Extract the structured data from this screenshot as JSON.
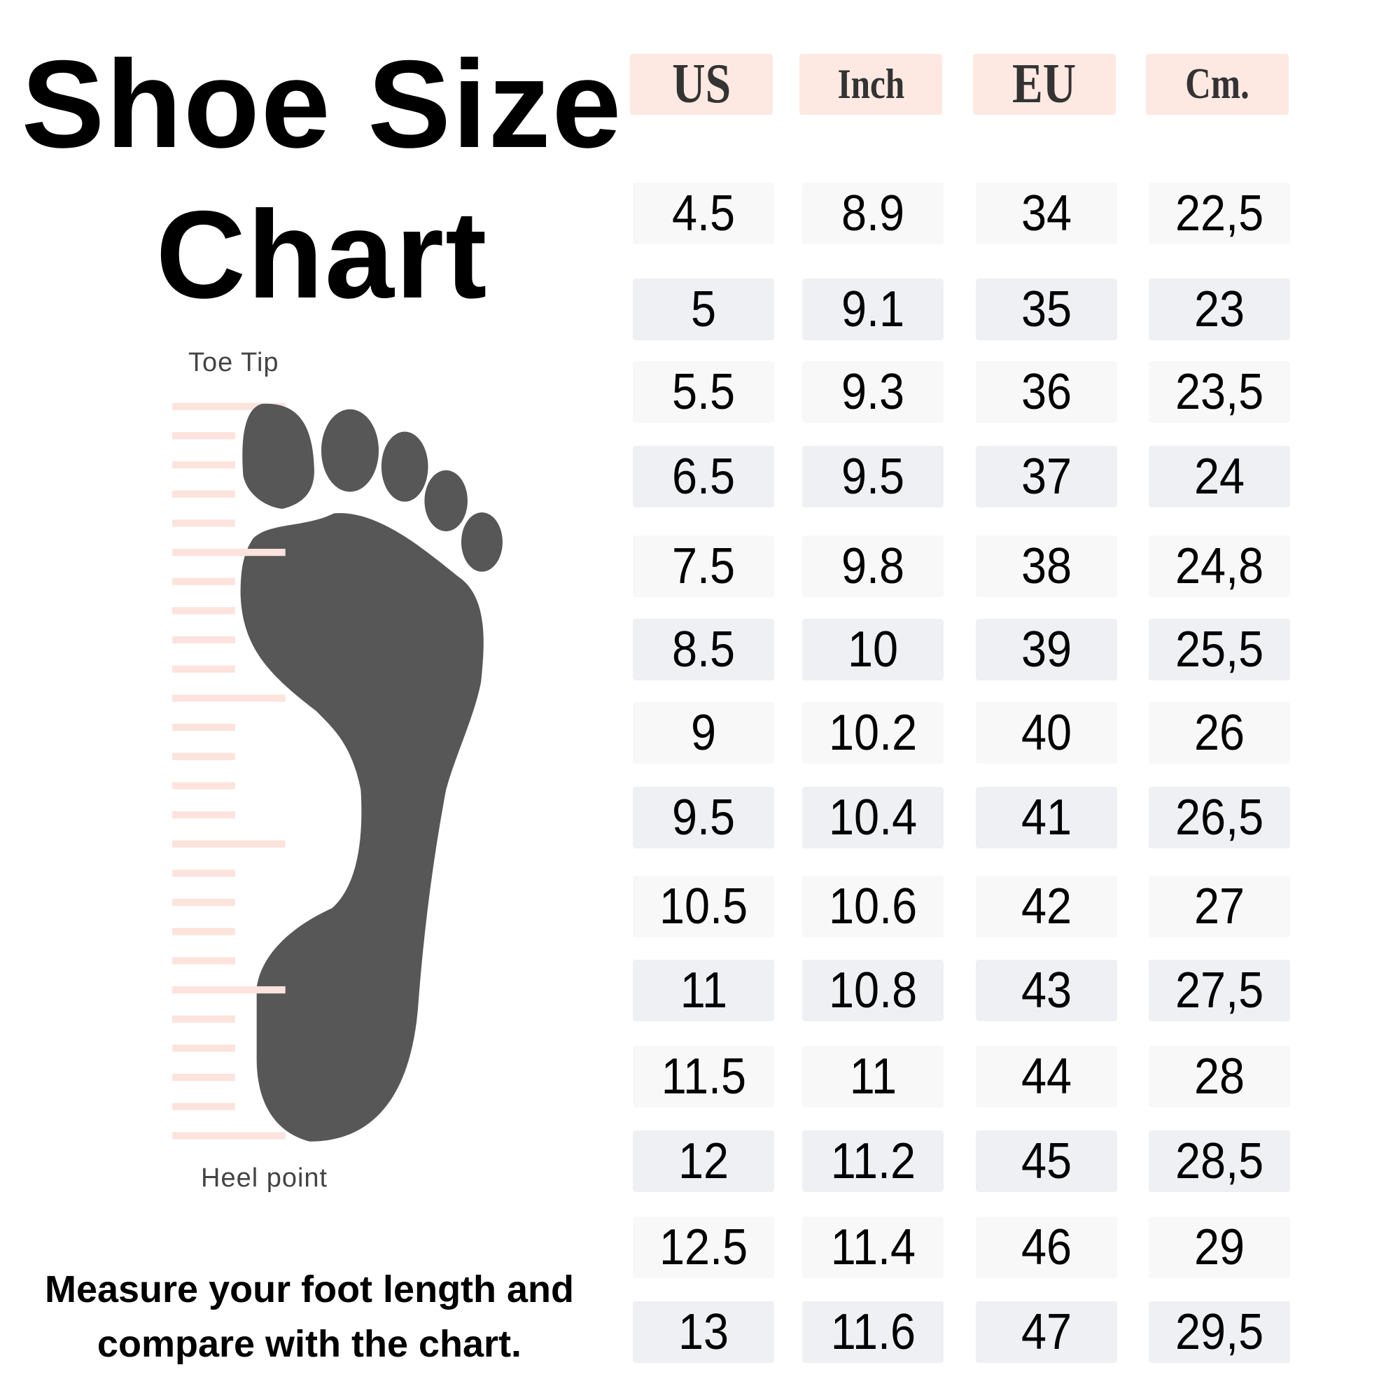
{
  "title": {
    "line1": "Shoe Size",
    "line2": "Chart"
  },
  "diagram": {
    "toe_label": "Toe Tip",
    "heel_label": "Heel point",
    "foot_color": "#575757",
    "ruler_color": "#fde3dd"
  },
  "instructions": {
    "line1": "Measure your foot length and",
    "line2": "compare with the chart."
  },
  "table": {
    "headers": [
      "US",
      "Inch",
      "EU",
      "Cm."
    ],
    "header_bg": "#fde9e2",
    "rows": [
      [
        "4.5",
        "8.9",
        "34",
        "22,5"
      ],
      [
        "5",
        "9.1",
        "35",
        "23"
      ],
      [
        "5.5",
        "9.3",
        "36",
        "23,5"
      ],
      [
        "6.5",
        "9.5",
        "37",
        "24"
      ],
      [
        "7.5",
        "9.8",
        "38",
        "24,8"
      ],
      [
        "8.5",
        "10",
        "39",
        "25,5"
      ],
      [
        "9",
        "10.2",
        "40",
        "26"
      ],
      [
        "9.5",
        "10.4",
        "41",
        "26,5"
      ],
      [
        "10.5",
        "10.6",
        "42",
        "27"
      ],
      [
        "11",
        "10.8",
        "43",
        "27,5"
      ],
      [
        "11.5",
        "11",
        "44",
        "28"
      ],
      [
        "12",
        "11.2",
        "45",
        "28,5"
      ],
      [
        "12.5",
        "11.4",
        "46",
        "29"
      ],
      [
        "13",
        "11.6",
        "47",
        "29,5"
      ]
    ]
  }
}
